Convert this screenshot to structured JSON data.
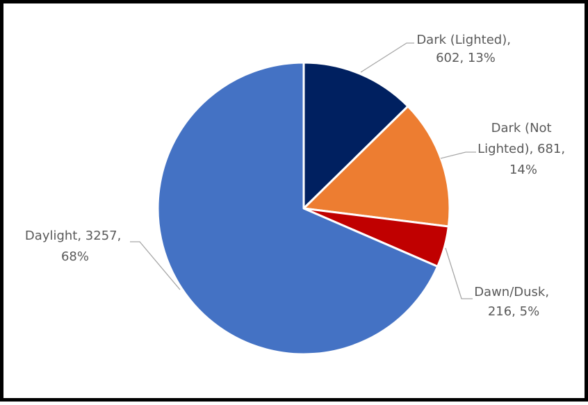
{
  "chart_data": {
    "type": "pie",
    "title": "",
    "slices": [
      {
        "label": "Dark (Lighted)",
        "value": 602,
        "percent": "13%",
        "color": "#002060"
      },
      {
        "label": "Dark (Not Lighted)",
        "value": 681,
        "percent": "14%",
        "color": "#ED7D31"
      },
      {
        "label": "Dawn/Dusk",
        "value": 216,
        "percent": "5%",
        "color": "#C00000"
      },
      {
        "label": "Daylight",
        "value": 3257,
        "percent": "68%",
        "color": "#4472C4"
      }
    ],
    "data_label_lines": [
      [
        "Dark (Lighted),",
        "602, 13%"
      ],
      [
        "Dark (Not",
        "Lighted), 681,",
        "14%"
      ],
      [
        "Dawn/Dusk,",
        "216, 5%"
      ],
      [
        "Daylight, 3257,",
        "68%"
      ]
    ],
    "start_angle": "12 o'clock",
    "direction": "clockwise",
    "slice_border_color": "#FFFFFF",
    "leader_line_color": "#A6A6A6",
    "label_text_color": "#595959",
    "legend": "none"
  }
}
